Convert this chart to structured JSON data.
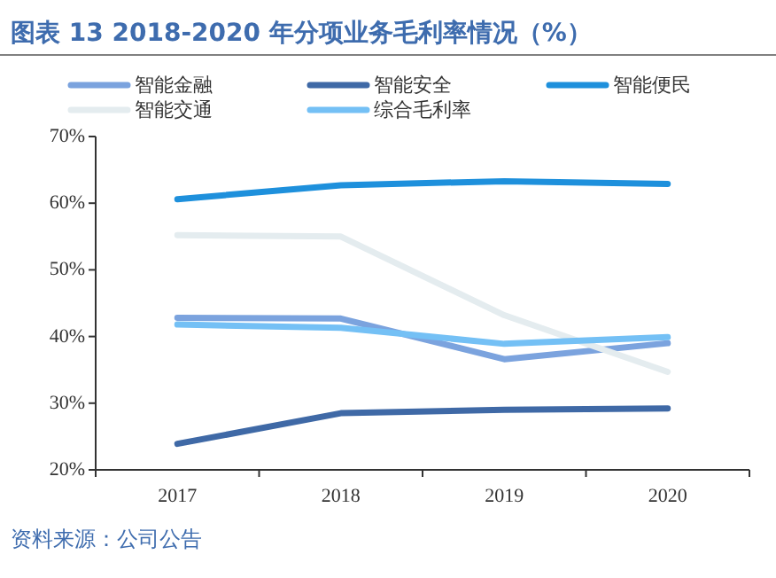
{
  "chart_data": {
    "type": "line",
    "title": "图表 13 2018-2020 年分项业务毛利率情况（%）",
    "categories": [
      "2017",
      "2018",
      "2019",
      "2020"
    ],
    "series": [
      {
        "name": "智能金融",
        "color": "#7ba3de",
        "values": [
          42.8,
          42.7,
          36.6,
          39.0
        ]
      },
      {
        "name": "智能安全",
        "color": "#3f69a6",
        "values": [
          23.9,
          28.5,
          29.0,
          29.2
        ]
      },
      {
        "name": "智能便民",
        "color": "#1e90dc",
        "values": [
          60.6,
          62.7,
          63.3,
          62.9
        ]
      },
      {
        "name": "智能交通",
        "color": "#e4ecef",
        "values": [
          55.2,
          55.0,
          43.2,
          34.7
        ]
      },
      {
        "name": "综合毛利率",
        "color": "#74c0f5",
        "values": [
          41.8,
          41.3,
          38.9,
          39.9
        ]
      }
    ],
    "ylim": [
      20,
      70
    ],
    "yticks": [
      {
        "value": 20,
        "label": "20%"
      },
      {
        "value": 30,
        "label": "30%"
      },
      {
        "value": 40,
        "label": "40%"
      },
      {
        "value": 50,
        "label": "50%"
      },
      {
        "value": 60,
        "label": "60%"
      },
      {
        "value": 70,
        "label": "70%"
      }
    ],
    "grid": false,
    "legend": "top",
    "marker": "none",
    "line_style": "solid",
    "annotations": [
      "资料来源：公司公告"
    ]
  }
}
